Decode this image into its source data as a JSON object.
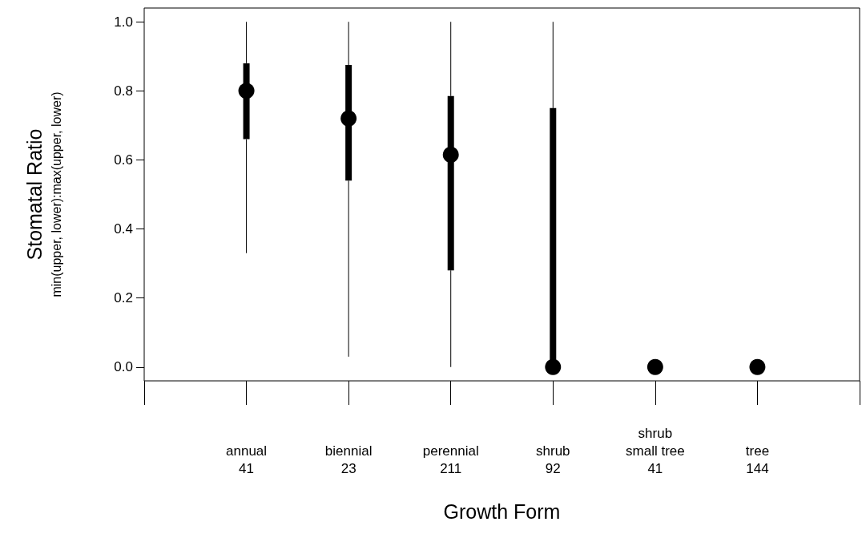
{
  "chart_data": {
    "type": "box",
    "xlabel": "Growth Form",
    "ylabel": "Stomatal Ratio\nmin(upper, lower):max(upper, lower)",
    "categories": [
      "annual\n41",
      "biennial\n23",
      "perennial\n211",
      "shrub\n92",
      "shrub\nsmall tree\n41",
      "tree\n144"
    ],
    "series": [
      {
        "color": "#000000",
        "boxes": [
          {
            "low": 0.33,
            "q1": 0.66,
            "median": 0.8,
            "q3": 0.88,
            "high": 1.0
          },
          {
            "low": 0.03,
            "q1": 0.54,
            "median": 0.72,
            "q3": 0.875,
            "high": 1.0
          },
          {
            "low": 0,
            "q1": 0.28,
            "median": 0.615,
            "q3": 0.785,
            "high": 1.0
          },
          {
            "low": 0,
            "q1": 0,
            "median": 0,
            "q3": 0.75,
            "high": 1.0
          },
          {
            "low": 0,
            "q1": 0,
            "median": 0,
            "q3": 0,
            "high": 0
          },
          {
            "low": 0,
            "q1": 0,
            "median": 0,
            "q3": 0,
            "high": 0
          }
        ]
      },
      {
        "type": "scatter",
        "color": "#000000",
        "marker": "circle",
        "x": [
          "annual\n41",
          "biennial\n23",
          "perennial\n211",
          "shrub\n92",
          "shrub\nsmall tree\n41",
          "tree\n144"
        ],
        "values": [
          0.8,
          0.72,
          0.615,
          0,
          0,
          0
        ]
      }
    ],
    "ylim": [
      -0.04,
      1.04
    ],
    "yticks": [
      {
        "value": 0,
        "label": "0.0"
      },
      {
        "value": 0.2,
        "label": "0.2"
      },
      {
        "value": 0.4,
        "label": "0.4"
      },
      {
        "value": 0.6,
        "label": "0.6"
      },
      {
        "value": 0.8,
        "label": "0.8"
      },
      {
        "value": 1,
        "label": "1.0"
      }
    ],
    "grid": false
  }
}
